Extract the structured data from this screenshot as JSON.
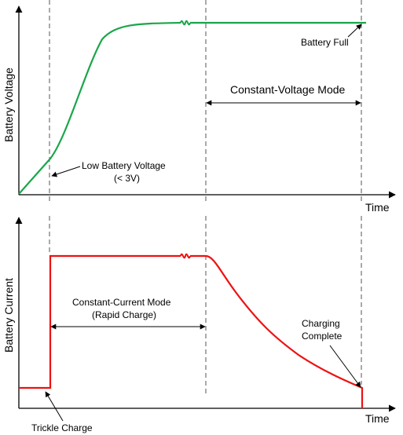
{
  "top_panel": {
    "y_axis_label": "Battery Voltage",
    "x_axis_label": "Time",
    "battery_full_label": "Battery Full",
    "cv_mode_label": "Constant-Voltage Mode",
    "low_voltage_label_line1": "Low Battery Voltage",
    "low_voltage_label_line2": "(< 3V)"
  },
  "bottom_panel": {
    "y_axis_label": "Battery Current",
    "x_axis_label": "Time",
    "cc_mode_label_line1": "Constant-Current Mode",
    "cc_mode_label_line2": "(Rapid Charge)",
    "charging_complete_line1": "Charging",
    "charging_complete_line2": "Complete",
    "trickle_label": "Trickle Charge"
  },
  "colors": {
    "voltage_curve": "#1aa64a",
    "current_curve": "#ee1111",
    "axes": "#000000",
    "guides": "#555555"
  }
}
